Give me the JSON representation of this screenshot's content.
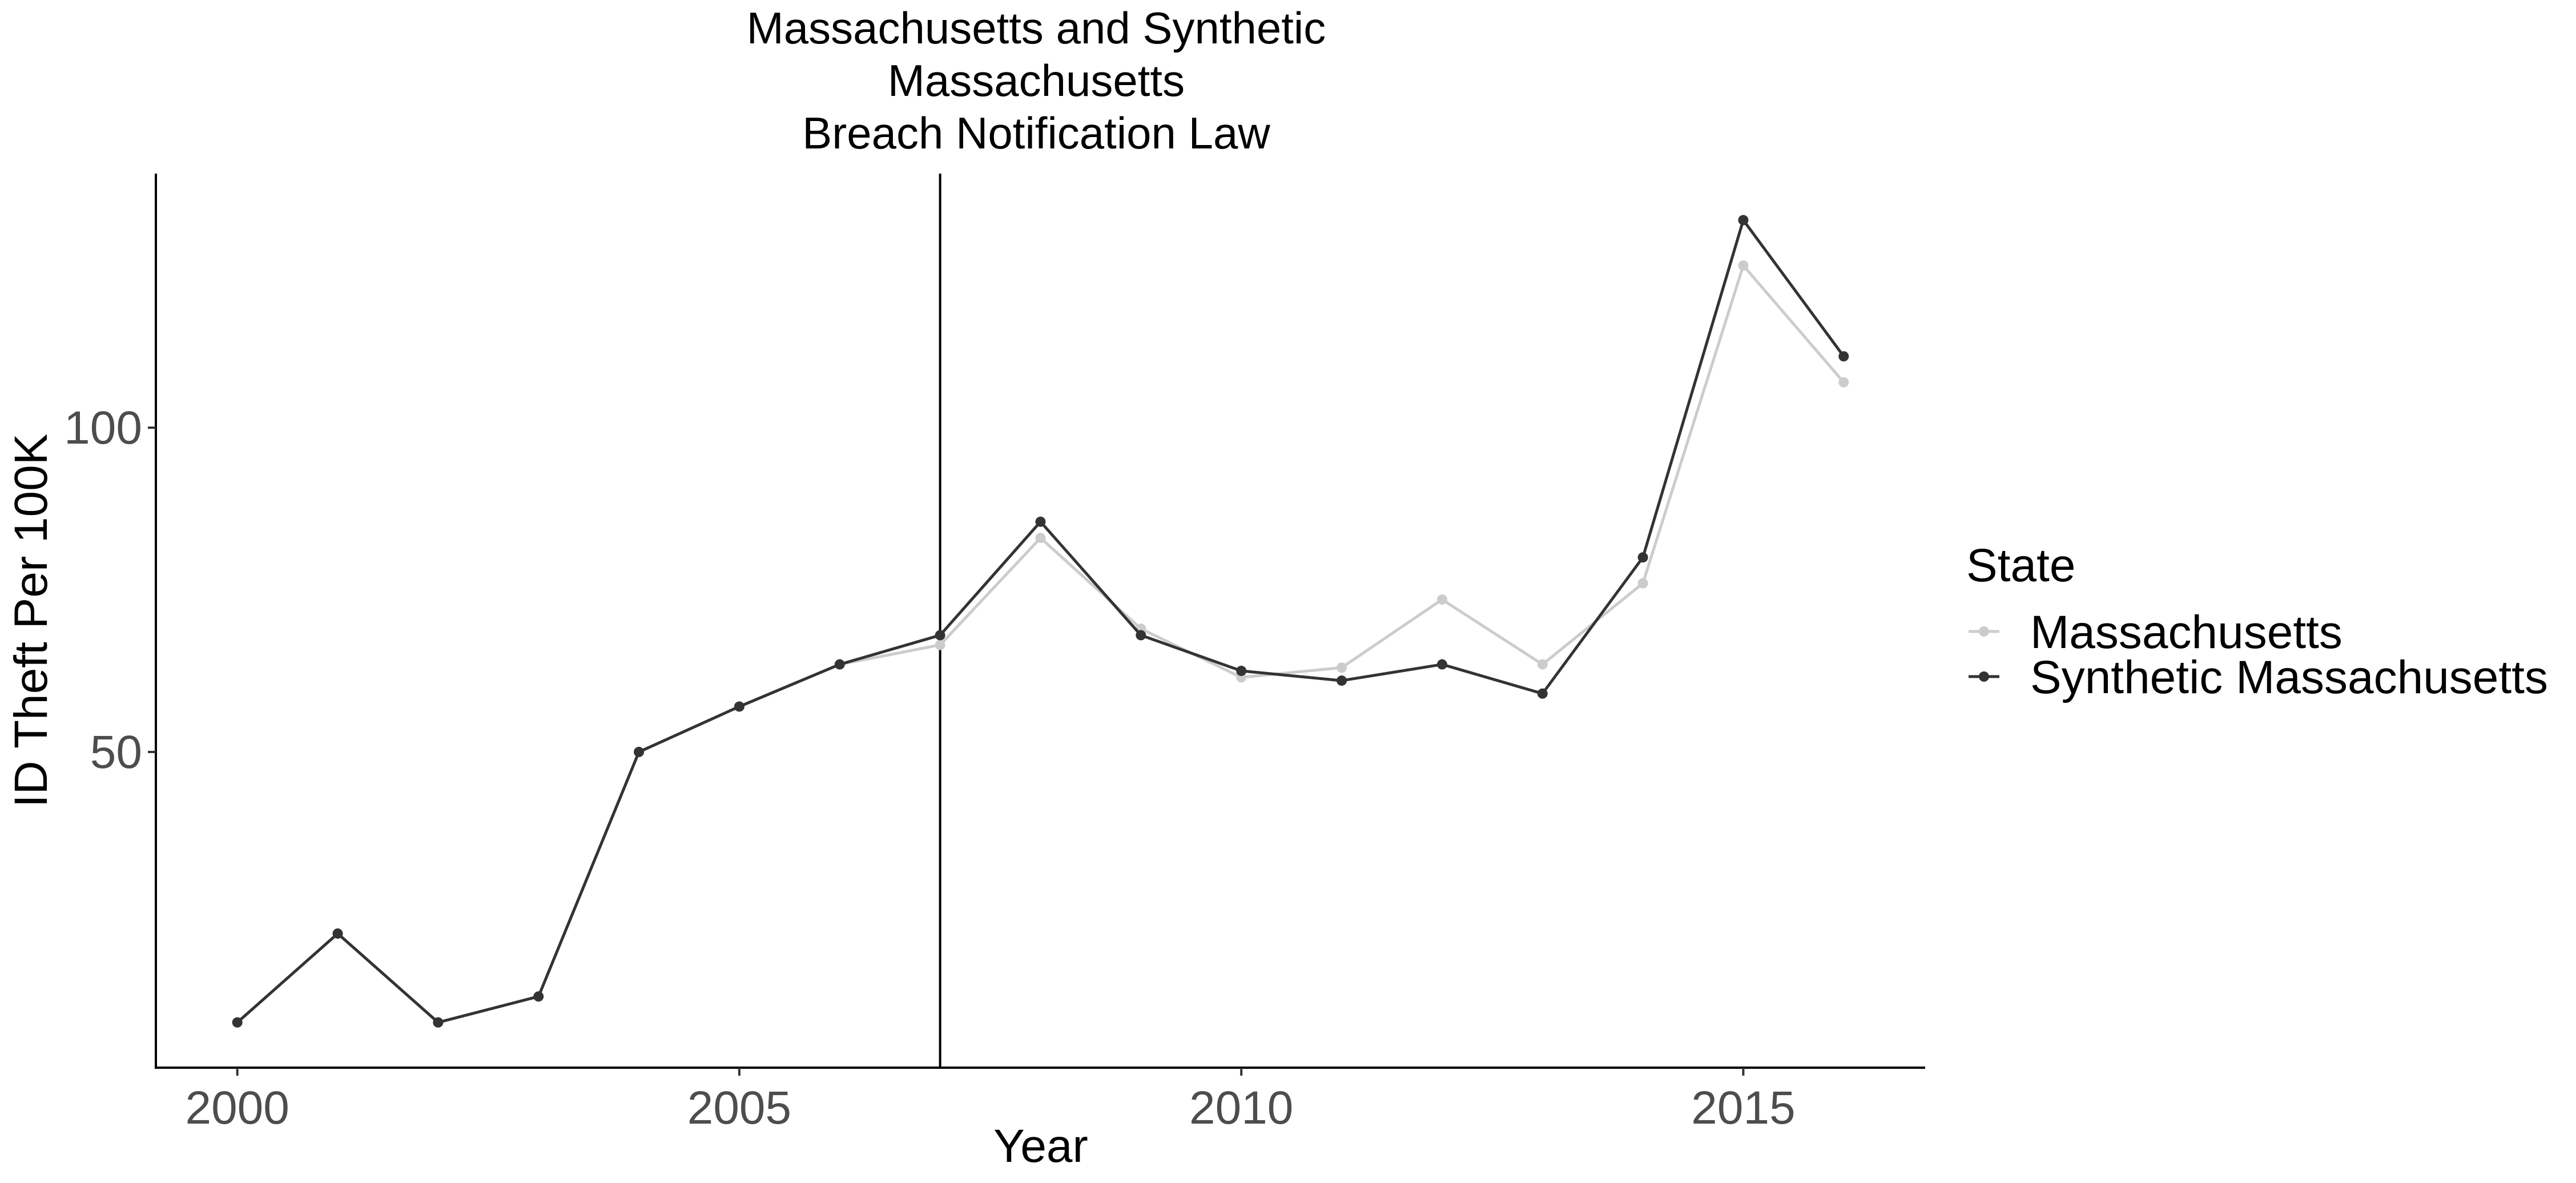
{
  "chart_data": {
    "type": "line",
    "title": [
      "Massachusetts and Synthetic",
      "Massachusetts",
      "Breach Notification Law"
    ],
    "xlabel": "Year",
    "ylabel": "ID Theft Per 100K",
    "xlim": [
      1999.2,
      2016.8
    ],
    "ylim": [
      1.5,
      139
    ],
    "x_ticks": [
      2000,
      2005,
      2010,
      2015
    ],
    "y_ticks": [
      50,
      100
    ],
    "grid": false,
    "vline": 2007,
    "legend": {
      "title": "State",
      "position": "right"
    },
    "x": [
      2000,
      2001,
      2002,
      2003,
      2004,
      2005,
      2006,
      2007,
      2008,
      2009,
      2010,
      2011,
      2012,
      2013,
      2014,
      2015,
      2016
    ],
    "series": [
      {
        "name": "Massachusetts",
        "color": "#cccccc",
        "values": [
          8.3,
          22,
          8.3,
          12.3,
          50,
          57,
          63.5,
          66.5,
          83,
          69,
          61.5,
          63,
          73.5,
          63.5,
          76,
          125,
          107
        ]
      },
      {
        "name": "Synthetic Massachusetts",
        "color": "#333333",
        "values": [
          8.3,
          22,
          8.3,
          12.3,
          50,
          57,
          63.5,
          68,
          85.5,
          68,
          62.5,
          61,
          63.5,
          59,
          80,
          132,
          111
        ]
      }
    ]
  }
}
